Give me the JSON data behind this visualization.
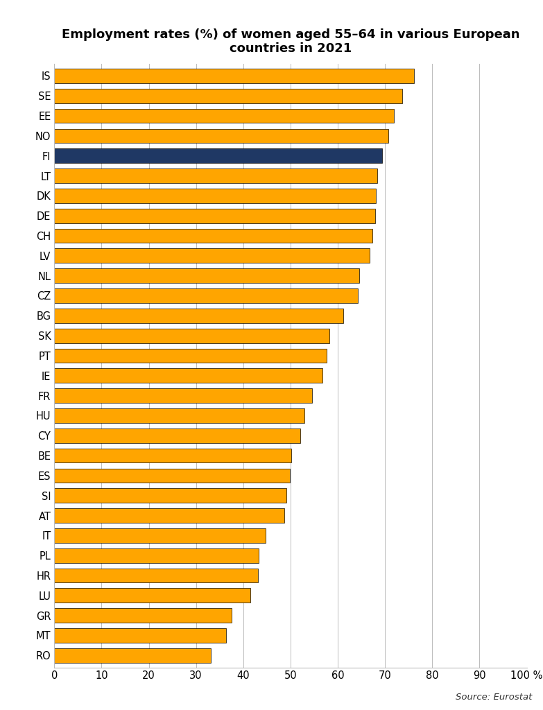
{
  "title": "Employment rates (%) of women aged 55–64 in various European\ncountries in 2021",
  "source": "Source: Eurostat",
  "categories": [
    "IS",
    "SE",
    "EE",
    "NO",
    "FI",
    "LT",
    "DK",
    "DE",
    "CH",
    "LV",
    "NL",
    "CZ",
    "BG",
    "SK",
    "PT",
    "IE",
    "FR",
    "HU",
    "CY",
    "BE",
    "ES",
    "SI",
    "AT",
    "IT",
    "PL",
    "HR",
    "LU",
    "GR",
    "MT",
    "RO"
  ],
  "values": [
    76.1,
    73.7,
    71.9,
    70.7,
    69.4,
    68.4,
    68.0,
    67.9,
    67.4,
    66.7,
    64.5,
    64.3,
    61.1,
    58.2,
    57.6,
    56.7,
    54.6,
    52.9,
    52.1,
    50.2,
    49.8,
    49.2,
    48.7,
    44.8,
    43.3,
    43.1,
    41.5,
    37.6,
    36.3,
    33.2
  ],
  "bar_colors": [
    "#FFA500",
    "#FFA500",
    "#FFA500",
    "#FFA500",
    "#1F3864",
    "#FFA500",
    "#FFA500",
    "#FFA500",
    "#FFA500",
    "#FFA500",
    "#FFA500",
    "#FFA500",
    "#FFA500",
    "#FFA500",
    "#FFA500",
    "#FFA500",
    "#FFA500",
    "#FFA500",
    "#FFA500",
    "#FFA500",
    "#FFA500",
    "#FFA500",
    "#FFA500",
    "#FFA500",
    "#FFA500",
    "#FFA500",
    "#FFA500",
    "#FFA500",
    "#FFA500",
    "#FFA500"
  ],
  "xlim": [
    0,
    100
  ],
  "xticks": [
    0,
    10,
    20,
    30,
    40,
    50,
    60,
    70,
    80,
    90,
    100
  ],
  "title_fontsize": 13,
  "tick_fontsize": 10.5,
  "source_fontsize": 9.5,
  "bar_height": 0.72,
  "background_color": "#FFFFFF",
  "grid_color": "#BBBBBB",
  "edge_color": "#000000",
  "edge_linewidth": 0.5
}
